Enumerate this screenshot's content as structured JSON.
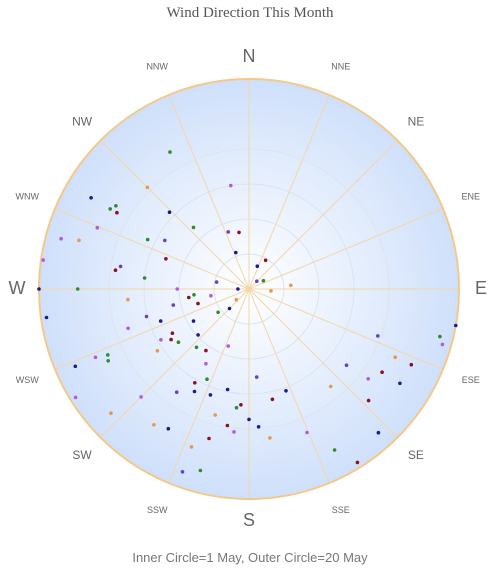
{
  "chart_data": {
    "type": "scatter",
    "coordinate_system": "polar",
    "title": "Wind Direction This Month",
    "footer": "Inner Circle=1 May, Outer Circle=20 May",
    "radial_axis": {
      "unit": "day of May",
      "min": 1,
      "max": 20,
      "rings": 5
    },
    "directions": [
      "N",
      "NNE",
      "NE",
      "ENE",
      "E",
      "ESE",
      "SE",
      "SSE",
      "S",
      "SSW",
      "SW",
      "WSW",
      "W",
      "WNW",
      "NW",
      "NNW"
    ],
    "major_directions": [
      "N",
      "E",
      "S",
      "W"
    ],
    "grid": true,
    "colors": {
      "rim": "#f3c98a",
      "spokes": "#f3d6a8",
      "rings": "#dde3ee",
      "fill_center": "#ffffff",
      "fill_edge": "#cfe0fb",
      "series": [
        "#1b1b8f",
        "#2e8b2e",
        "#8b1020",
        "#b05ae0",
        "#e39a4a",
        "#6a3fbf"
      ]
    },
    "series": [
      {
        "color_index": 0,
        "points": [
          {
            "direction": 270,
            "day": 20.0
          },
          {
            "direction": 262,
            "day": 19.5
          },
          {
            "direction": 246,
            "day": 18.2
          },
          {
            "direction": 208,
            "day": 11.5
          },
          {
            "direction": 200,
            "day": 11.2
          },
          {
            "direction": 180,
            "day": 12.8
          },
          {
            "direction": 176,
            "day": 13.5
          },
          {
            "direction": 122,
            "day": 17.1
          },
          {
            "direction": 138,
            "day": 18.5
          },
          {
            "direction": 228,
            "day": 7.2
          },
          {
            "direction": 240,
            "day": 6.8
          },
          {
            "direction": 300,
            "day": 17.5
          },
          {
            "direction": 340,
            "day": 4.5
          },
          {
            "direction": 20,
            "day": 3.2
          },
          {
            "direction": 225,
            "day": 3.5
          },
          {
            "direction": 210,
            "day": 15.6
          },
          {
            "direction": 250,
            "day": 9.5
          },
          {
            "direction": 270,
            "day": 2.0
          },
          {
            "direction": 100,
            "day": 20.0
          },
          {
            "direction": 192,
            "day": 10.3
          },
          {
            "direction": 314,
            "day": 11.0
          },
          {
            "direction": 160,
            "day": 10.8
          }
        ]
      },
      {
        "color_index": 1,
        "points": [
          {
            "direction": 300,
            "day": 15.5
          },
          {
            "direction": 302,
            "day": 15.2
          },
          {
            "direction": 243,
            "day": 15.3
          },
          {
            "direction": 245,
            "day": 15.1
          },
          {
            "direction": 264,
            "day": 6.0
          },
          {
            "direction": 186,
            "day": 11.8
          },
          {
            "direction": 270,
            "day": 16.5
          },
          {
            "direction": 152,
            "day": 17.5
          },
          {
            "direction": 296,
            "day": 11.2
          },
          {
            "direction": 233,
            "day": 4.5
          },
          {
            "direction": 205,
            "day": 10.0
          },
          {
            "direction": 60,
            "day": 2.5
          },
          {
            "direction": 276,
            "day": 10.5
          },
          {
            "direction": 222,
            "day": 8.1
          },
          {
            "direction": 318,
            "day": 8.5
          },
          {
            "direction": 195,
            "day": 18.0
          },
          {
            "direction": 330,
            "day": 15.3
          },
          {
            "direction": 104,
            "day": 18.8
          },
          {
            "direction": 233,
            "day": 9.0
          }
        ]
      },
      {
        "color_index": 2,
        "points": [
          {
            "direction": 300,
            "day": 14.8
          },
          {
            "direction": 240,
            "day": 9.0
          },
          {
            "direction": 237,
            "day": 9.4
          },
          {
            "direction": 189,
            "day": 13.5
          },
          {
            "direction": 210,
            "day": 10.8
          },
          {
            "direction": 184,
            "day": 11.5
          },
          {
            "direction": 262,
            "day": 6.5
          },
          {
            "direction": 122,
            "day": 15.2
          },
          {
            "direction": 133,
            "day": 15.8
          },
          {
            "direction": 115,
            "day": 17.2
          },
          {
            "direction": 148,
            "day": 19.5
          },
          {
            "direction": 215,
            "day": 7.8
          },
          {
            "direction": 290,
            "day": 9.0
          },
          {
            "direction": 254,
            "day": 5.8
          },
          {
            "direction": 350,
            "day": 6.2
          },
          {
            "direction": 30,
            "day": 4.0
          },
          {
            "direction": 168,
            "day": 11.2
          },
          {
            "direction": 195,
            "day": 15.0
          },
          {
            "direction": 278,
            "day": 13.2
          }
        ]
      },
      {
        "color_index": 3,
        "points": [
          {
            "direction": 278,
            "day": 19.8
          },
          {
            "direction": 285,
            "day": 18.6
          },
          {
            "direction": 252,
            "day": 12.5
          },
          {
            "direction": 246,
            "day": 16.2
          },
          {
            "direction": 270,
            "day": 7.5
          },
          {
            "direction": 240,
            "day": 10.2
          },
          {
            "direction": 200,
            "day": 6.5
          },
          {
            "direction": 186,
            "day": 14.0
          },
          {
            "direction": 127,
            "day": 14.5
          },
          {
            "direction": 238,
            "day": 19.5
          },
          {
            "direction": 225,
            "day": 14.8
          },
          {
            "direction": 210,
            "day": 8.8
          },
          {
            "direction": 292,
            "day": 15.8
          },
          {
            "direction": 350,
            "day": 10.5
          },
          {
            "direction": 106,
            "day": 19.2
          },
          {
            "direction": 158,
            "day": 15.0
          },
          {
            "direction": 260,
            "day": 4.5
          }
        ]
      },
      {
        "color_index": 4,
        "points": [
          {
            "direction": 286,
            "day": 17.0
          },
          {
            "direction": 200,
            "day": 16.2
          },
          {
            "direction": 215,
            "day": 16.0
          },
          {
            "direction": 172,
            "day": 14.6
          },
          {
            "direction": 236,
            "day": 11.0
          },
          {
            "direction": 115,
            "day": 15.6
          },
          {
            "direction": 85,
            "day": 4.8
          },
          {
            "direction": 95,
            "day": 3.0
          },
          {
            "direction": 195,
            "day": 12.8
          },
          {
            "direction": 228,
            "day": 17.8
          },
          {
            "direction": 140,
            "day": 12.5
          },
          {
            "direction": 230,
            "day": 2.5
          },
          {
            "direction": 315,
            "day": 14.0
          },
          {
            "direction": 265,
            "day": 12.0
          }
        ]
      },
      {
        "color_index": 5,
        "points": [
          {
            "direction": 280,
            "day": 12.8
          },
          {
            "direction": 300,
            "day": 9.8
          },
          {
            "direction": 258,
            "day": 8.0
          },
          {
            "direction": 215,
            "day": 12.4
          },
          {
            "direction": 175,
            "day": 9.0
          },
          {
            "direction": 110,
            "day": 13.4
          },
          {
            "direction": 255,
            "day": 10.6
          },
          {
            "direction": 200,
            "day": 18.6
          },
          {
            "direction": 128,
            "day": 12.2
          },
          {
            "direction": 340,
            "day": 6.5
          },
          {
            "direction": 45,
            "day": 2.0
          },
          {
            "direction": 282,
            "day": 4.0
          }
        ]
      }
    ]
  }
}
